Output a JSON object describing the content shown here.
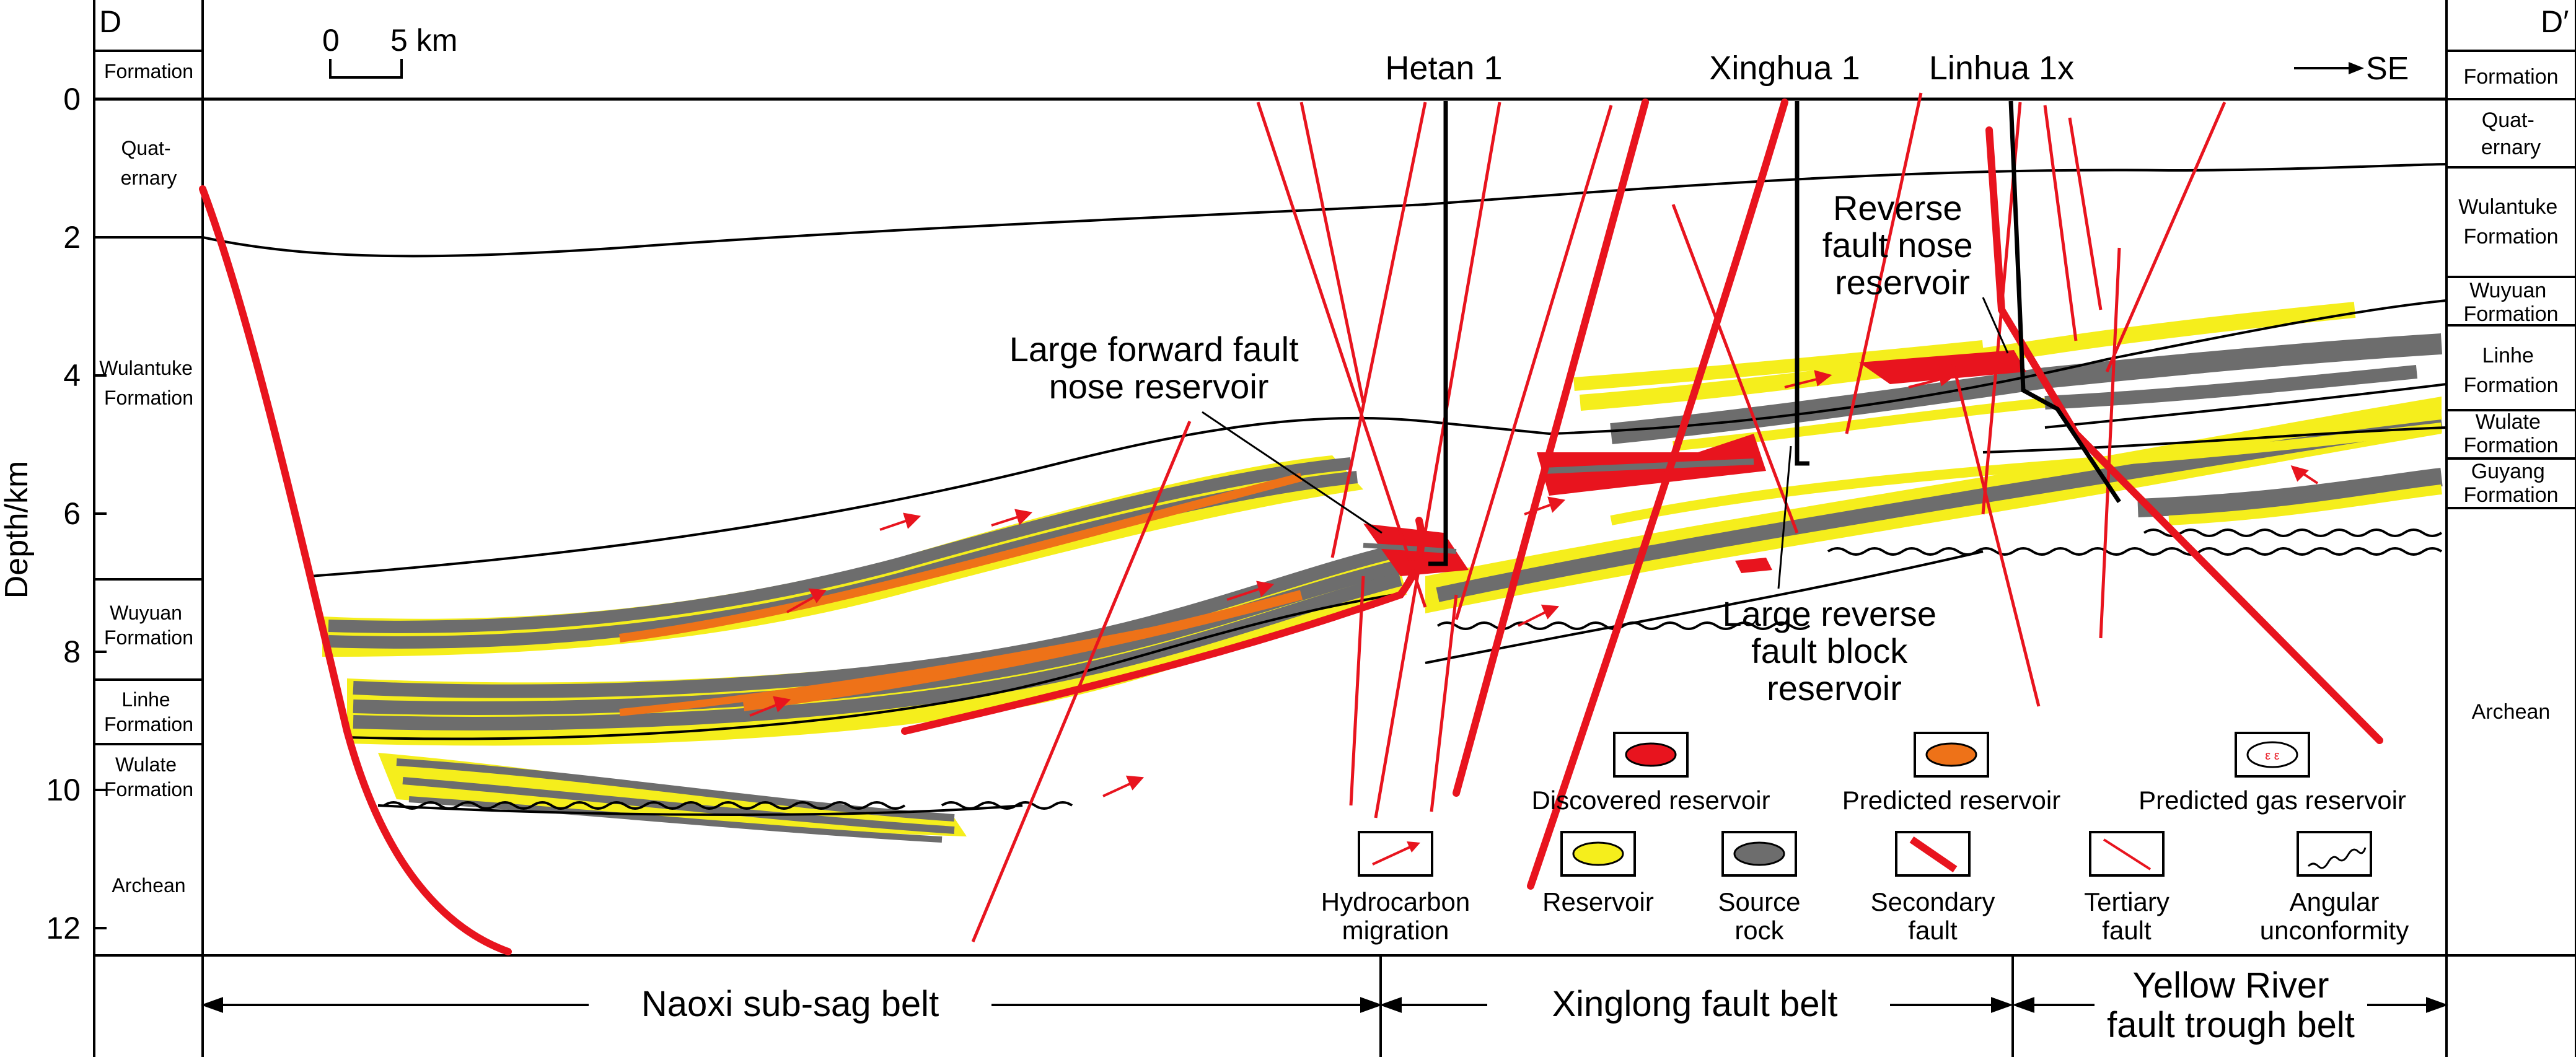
{
  "section_ends": {
    "left": "D",
    "right": "D′"
  },
  "scale_bar": {
    "zero": "0",
    "length": "5 km"
  },
  "direction": "SE",
  "depth_axis": {
    "label": "Depth/km",
    "ticks": [
      "0",
      "2",
      "4",
      "6",
      "8",
      "10",
      "12"
    ]
  },
  "wells": [
    "Hetan 1",
    "Xinghua 1",
    "Linhua 1x"
  ],
  "left_column": {
    "header": "Formation",
    "units": [
      {
        "lines": [
          "Quat-",
          "ernary"
        ]
      },
      {
        "lines": [
          "Wulantuke",
          "Formation"
        ]
      },
      {
        "lines": [
          "Wuyuan",
          "Formation"
        ]
      },
      {
        "lines": [
          "Linhe",
          "Formation"
        ]
      },
      {
        "lines": [
          "Wulate",
          "Formation"
        ]
      },
      {
        "lines": [
          "Archean"
        ]
      }
    ]
  },
  "right_column": {
    "header": "Formation",
    "units": [
      {
        "lines": [
          "Quat-",
          "ernary"
        ]
      },
      {
        "lines": [
          "Wulantuke",
          "Formation"
        ]
      },
      {
        "lines": [
          "Wuyuan",
          "Formation"
        ]
      },
      {
        "lines": [
          "Linhe",
          "Formation"
        ]
      },
      {
        "lines": [
          "Wulate",
          "Formation"
        ]
      },
      {
        "lines": [
          "Guyang",
          "Formation"
        ]
      },
      {
        "lines": [
          "Archean"
        ]
      }
    ]
  },
  "annotations": [
    {
      "lines": [
        "Large forward fault",
        "nose reservoir"
      ]
    },
    {
      "lines": [
        "Reverse",
        "fault nose",
        "reservoir"
      ]
    },
    {
      "lines": [
        "Large reverse",
        "fault block",
        "reservoir"
      ]
    }
  ],
  "legend": [
    {
      "label": "Discovered reservoir",
      "symbol": "discovered-reservoir",
      "color": "#e8141e"
    },
    {
      "label": "Predicted reservoir",
      "symbol": "predicted-reservoir",
      "color": "#ee7218"
    },
    {
      "label": "Predicted gas reservoir",
      "symbol": "predicted-gas-reservoir",
      "color": "#e8141e"
    },
    {
      "label": "Hydrocarbon\nmigration",
      "symbol": "hydrocarbon-migration",
      "color": "#e8141e"
    },
    {
      "label": "Reservoir",
      "symbol": "reservoir",
      "color": "#f5ee1c"
    },
    {
      "label": "Source\nrock",
      "symbol": "source-rock",
      "color": "#6d6d6d"
    },
    {
      "label": "Secondary\nfault",
      "symbol": "secondary-fault",
      "color": "#e8141e"
    },
    {
      "label": "Tertiary\nfault",
      "symbol": "tertiary-fault",
      "color": "#e8141e"
    },
    {
      "label": "Angular\nunconformity",
      "symbol": "angular-unconformity",
      "color": "#000000"
    }
  ],
  "belts": [
    "Naoxi sub-sag belt",
    "Xinglong fault belt",
    "Yellow River\nfault trough belt"
  ],
  "colors": {
    "reservoir": "#f5ee1c",
    "source_rock": "#6d6d6d",
    "predicted_reservoir": "#ee7218",
    "discovered_reservoir": "#e8141e",
    "fault": "#e8141e",
    "horizon": "#000000"
  }
}
